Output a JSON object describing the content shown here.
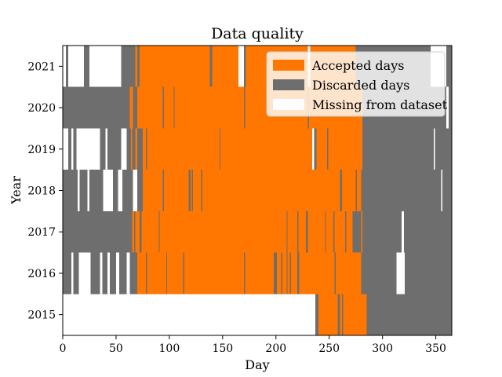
{
  "chart_data": {
    "type": "heatmap",
    "title": "Data quality",
    "xlabel": "Day",
    "ylabel": "Year",
    "xlim": [
      0,
      365
    ],
    "xticks": [
      0,
      50,
      100,
      150,
      200,
      250,
      300,
      350
    ],
    "years": [
      2015,
      2016,
      2017,
      2018,
      2019,
      2020,
      2021
    ],
    "legend": {
      "placement": "top-right",
      "entries": [
        {
          "key": "accepted",
          "label": "Accepted days",
          "color": "#ff7700"
        },
        {
          "key": "discarded",
          "label": "Discarded days",
          "color": "#6e6e6e"
        },
        {
          "key": "missing",
          "label": "Missing from dataset",
          "color": "#ffffff"
        }
      ]
    },
    "rows": [
      {
        "year": 2015,
        "segments": [
          [
            "missing",
            0,
            237
          ],
          [
            "discarded",
            237,
            240
          ],
          [
            "accepted",
            240,
            258
          ],
          [
            "discarded",
            258,
            260
          ],
          [
            "accepted",
            260,
            262
          ],
          [
            "discarded",
            262,
            263
          ],
          [
            "accepted",
            263,
            285
          ],
          [
            "discarded",
            285,
            365
          ]
        ]
      },
      {
        "year": 2016,
        "segments": [
          [
            "discarded",
            0,
            8
          ],
          [
            "missing",
            8,
            10
          ],
          [
            "discarded",
            10,
            15
          ],
          [
            "missing",
            15,
            26
          ],
          [
            "discarded",
            26,
            35
          ],
          [
            "missing",
            35,
            37
          ],
          [
            "discarded",
            37,
            42
          ],
          [
            "missing",
            42,
            44
          ],
          [
            "discarded",
            44,
            50
          ],
          [
            "missing",
            50,
            53
          ],
          [
            "discarded",
            53,
            60
          ],
          [
            "missing",
            60,
            63
          ],
          [
            "discarded",
            63,
            70
          ],
          [
            "accepted",
            70,
            78
          ],
          [
            "discarded",
            78,
            79
          ],
          [
            "accepted",
            79,
            97
          ],
          [
            "discarded",
            97,
            98
          ],
          [
            "accepted",
            98,
            113
          ],
          [
            "discarded",
            113,
            114
          ],
          [
            "accepted",
            114,
            170
          ],
          [
            "discarded",
            170,
            171
          ],
          [
            "accepted",
            171,
            198
          ],
          [
            "discarded",
            198,
            201
          ],
          [
            "accepted",
            201,
            205
          ],
          [
            "discarded",
            205,
            206
          ],
          [
            "accepted",
            206,
            210
          ],
          [
            "discarded",
            210,
            211
          ],
          [
            "accepted",
            211,
            213
          ],
          [
            "discarded",
            213,
            214
          ],
          [
            "accepted",
            214,
            220
          ],
          [
            "discarded",
            220,
            222
          ],
          [
            "accepted",
            222,
            255
          ],
          [
            "discarded",
            255,
            256
          ],
          [
            "accepted",
            256,
            280
          ],
          [
            "discarded",
            280,
            313
          ],
          [
            "missing",
            313,
            321
          ],
          [
            "discarded",
            321,
            365
          ]
        ]
      },
      {
        "year": 2017,
        "segments": [
          [
            "discarded",
            0,
            65
          ],
          [
            "accepted",
            65,
            67
          ],
          [
            "discarded",
            67,
            68
          ],
          [
            "accepted",
            68,
            72
          ],
          [
            "discarded",
            72,
            74
          ],
          [
            "accepted",
            74,
            90
          ],
          [
            "discarded",
            90,
            91
          ],
          [
            "accepted",
            91,
            210
          ],
          [
            "discarded",
            210,
            211
          ],
          [
            "accepted",
            211,
            220
          ],
          [
            "discarded",
            220,
            221
          ],
          [
            "accepted",
            221,
            228
          ],
          [
            "discarded",
            228,
            230
          ],
          [
            "accepted",
            230,
            246
          ],
          [
            "discarded",
            246,
            247
          ],
          [
            "accepted",
            247,
            254
          ],
          [
            "discarded",
            254,
            255
          ],
          [
            "accepted",
            255,
            265
          ],
          [
            "discarded",
            265,
            266
          ],
          [
            "accepted",
            266,
            272
          ],
          [
            "discarded",
            272,
            280
          ],
          [
            "accepted",
            280,
            281
          ],
          [
            "discarded",
            281,
            318
          ],
          [
            "missing",
            318,
            320
          ],
          [
            "discarded",
            320,
            365
          ]
        ]
      },
      {
        "year": 2018,
        "segments": [
          [
            "discarded",
            0,
            14
          ],
          [
            "missing",
            14,
            16
          ],
          [
            "discarded",
            16,
            23
          ],
          [
            "missing",
            23,
            25
          ],
          [
            "discarded",
            25,
            38
          ],
          [
            "missing",
            38,
            47
          ],
          [
            "discarded",
            47,
            52
          ],
          [
            "missing",
            52,
            56
          ],
          [
            "discarded",
            56,
            66
          ],
          [
            "missing",
            66,
            70
          ],
          [
            "discarded",
            70,
            75
          ],
          [
            "accepted",
            75,
            94
          ],
          [
            "discarded",
            94,
            95
          ],
          [
            "accepted",
            95,
            118
          ],
          [
            "discarded",
            118,
            120
          ],
          [
            "accepted",
            120,
            121
          ],
          [
            "discarded",
            121,
            122
          ],
          [
            "accepted",
            122,
            130
          ],
          [
            "discarded",
            130,
            131
          ],
          [
            "accepted",
            131,
            260
          ],
          [
            "discarded",
            260,
            262
          ],
          [
            "accepted",
            262,
            275
          ],
          [
            "discarded",
            275,
            276
          ],
          [
            "accepted",
            276,
            280
          ],
          [
            "discarded",
            280,
            355
          ],
          [
            "missing",
            355,
            356
          ],
          [
            "discarded",
            356,
            365
          ]
        ]
      },
      {
        "year": 2019,
        "segments": [
          [
            "missing",
            0,
            5
          ],
          [
            "discarded",
            5,
            8
          ],
          [
            "missing",
            8,
            10
          ],
          [
            "discarded",
            10,
            13
          ],
          [
            "missing",
            13,
            35
          ],
          [
            "discarded",
            35,
            40
          ],
          [
            "missing",
            40,
            42
          ],
          [
            "discarded",
            42,
            55
          ],
          [
            "missing",
            55,
            60
          ],
          [
            "discarded",
            60,
            64
          ],
          [
            "accepted",
            64,
            65
          ],
          [
            "discarded",
            65,
            68
          ],
          [
            "accepted",
            68,
            70
          ],
          [
            "discarded",
            70,
            75
          ],
          [
            "accepted",
            75,
            78
          ],
          [
            "discarded",
            78,
            79
          ],
          [
            "accepted",
            79,
            147
          ],
          [
            "discarded",
            147,
            148
          ],
          [
            "accepted",
            148,
            234
          ],
          [
            "missing",
            234,
            236
          ],
          [
            "discarded",
            236,
            238
          ],
          [
            "accepted",
            238,
            248
          ],
          [
            "discarded",
            248,
            249
          ],
          [
            "accepted",
            249,
            281
          ],
          [
            "discarded",
            281,
            348
          ],
          [
            "missing",
            348,
            349
          ],
          [
            "discarded",
            349,
            365
          ]
        ]
      },
      {
        "year": 2020,
        "segments": [
          [
            "discarded",
            0,
            63
          ],
          [
            "accepted",
            63,
            66
          ],
          [
            "discarded",
            66,
            70
          ],
          [
            "accepted",
            70,
            94
          ],
          [
            "discarded",
            94,
            95
          ],
          [
            "accepted",
            95,
            104
          ],
          [
            "discarded",
            104,
            105
          ],
          [
            "accepted",
            105,
            170
          ],
          [
            "discarded",
            170,
            171
          ],
          [
            "accepted",
            171,
            230
          ],
          [
            "discarded",
            230,
            231
          ],
          [
            "accepted",
            231,
            281
          ],
          [
            "discarded",
            281,
            360
          ],
          [
            "missing",
            360,
            362
          ],
          [
            "discarded",
            362,
            365
          ]
        ]
      },
      {
        "year": 2021,
        "segments": [
          [
            "missing",
            0,
            3
          ],
          [
            "discarded",
            3,
            5
          ],
          [
            "missing",
            5,
            20
          ],
          [
            "discarded",
            20,
            25
          ],
          [
            "missing",
            25,
            55
          ],
          [
            "discarded",
            55,
            68
          ],
          [
            "accepted",
            68,
            70
          ],
          [
            "discarded",
            70,
            72
          ],
          [
            "accepted",
            72,
            138
          ],
          [
            "discarded",
            138,
            140
          ],
          [
            "accepted",
            140,
            165
          ],
          [
            "missing",
            165,
            170
          ],
          [
            "discarded",
            170,
            172
          ],
          [
            "accepted",
            172,
            230
          ],
          [
            "missing",
            230,
            232
          ],
          [
            "accepted",
            232,
            275
          ],
          [
            "discarded",
            275,
            345
          ],
          [
            "missing",
            345,
            360
          ],
          [
            "discarded",
            360,
            365
          ]
        ]
      }
    ]
  }
}
